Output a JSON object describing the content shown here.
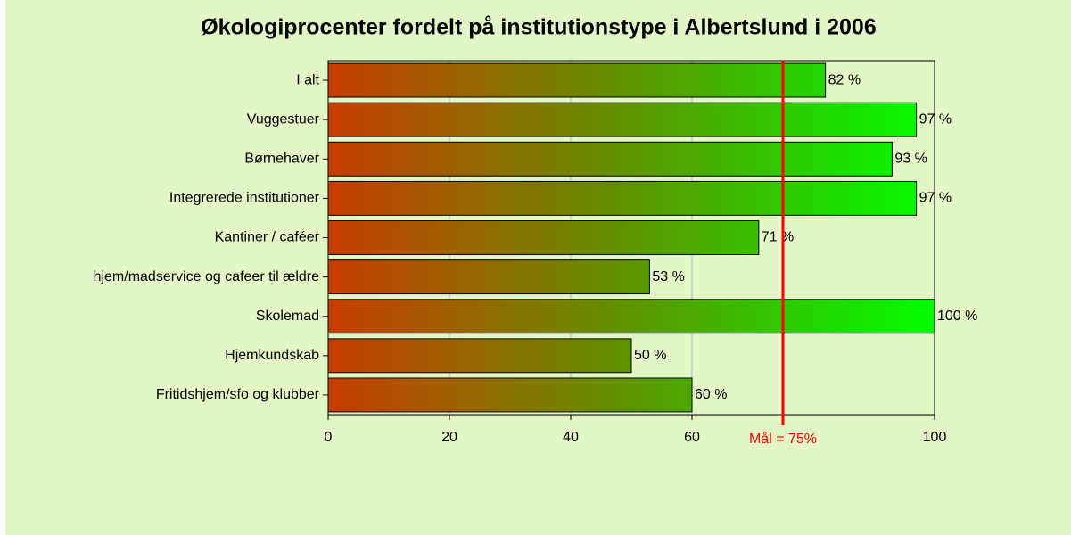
{
  "chart_data": {
    "type": "bar",
    "orientation": "horizontal",
    "title": "Økologiprocenter fordelt på institutionstype i Albertslund i 2006",
    "categories": [
      "I alt",
      "Vuggestuer",
      "Børnehaver",
      "Integrerede institutioner",
      "Kantiner / caféer",
      "hjem/madservice og cafeer til ældre",
      "Skolemad",
      "Hjemkundskab",
      "Fritidshjem/sfo og klubber"
    ],
    "values": [
      82,
      97,
      93,
      97,
      71,
      53,
      100,
      50,
      60
    ],
    "value_labels": [
      "82 %",
      "97 %",
      "93 %",
      "97 %",
      "71 %",
      "53 %",
      "100 %",
      "50 %",
      "60 %"
    ],
    "gradient": [
      "#c83c00",
      "#00ff00"
    ],
    "xlim": [
      0,
      100
    ],
    "xticks": [
      0,
      20,
      40,
      60,
      100
    ],
    "grid": true,
    "target_line": {
      "value": 75,
      "label": "Mål = 75%",
      "color": "#ff0000"
    }
  }
}
